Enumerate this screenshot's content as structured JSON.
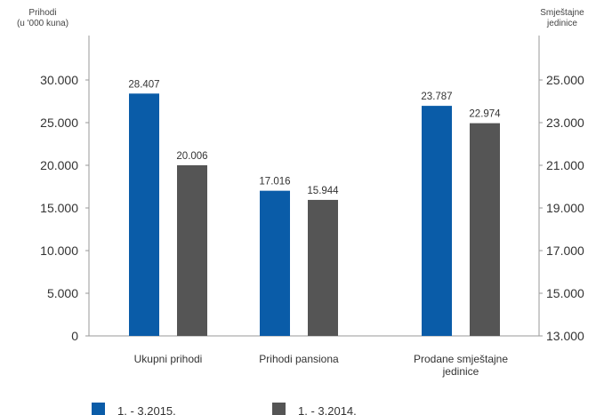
{
  "chart_data": {
    "type": "bar",
    "left_axis_title": [
      "Prihodi",
      "(u '000 kuna)"
    ],
    "right_axis_title": [
      "Smještajne",
      "jedinice"
    ],
    "left_ticks": [
      "0",
      "5.000",
      "10.000",
      "15.000",
      "20.000",
      "25.000",
      "30.000"
    ],
    "right_ticks": [
      "13.000",
      "15.000",
      "17.000",
      "19.000",
      "21.000",
      "23.000",
      "25.000"
    ],
    "left_ylim": [
      0,
      30000
    ],
    "right_ylim": [
      13000,
      25000
    ],
    "categories": [
      {
        "label": [
          "Ukupni prihodi"
        ],
        "axis": "left"
      },
      {
        "label": [
          "Prihodi pansiona"
        ],
        "axis": "left"
      },
      {
        "label": [
          "Prodane smještajne",
          "jedinice"
        ],
        "axis": "right"
      }
    ],
    "series": [
      {
        "name": "1. - 3.2015.",
        "color": "#0a5ca8",
        "values": [
          28407,
          17016,
          23787
        ],
        "labels": [
          "28.407",
          "17.016",
          "23.787"
        ]
      },
      {
        "name": "1. - 3.2014.",
        "color": "#555555",
        "values": [
          20006,
          15944,
          22974
        ],
        "labels": [
          "20.006",
          "15.944",
          "22.974"
        ]
      }
    ]
  }
}
